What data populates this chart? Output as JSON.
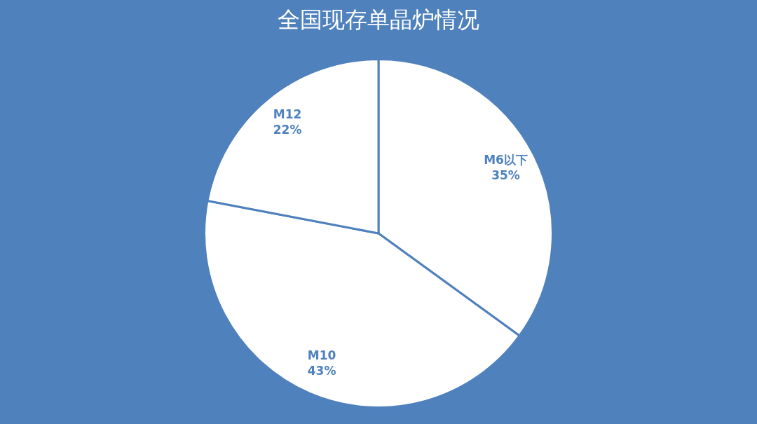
{
  "chart_data": {
    "type": "pie",
    "title": "全国现存单晶炉情况",
    "categories": [
      "M6以下",
      "M10",
      "M12"
    ],
    "values": [
      35,
      43,
      22
    ],
    "colors": [
      "#ffffff",
      "#ffffff",
      "#ffffff"
    ],
    "value_labels": [
      "35%",
      "43%",
      "22%"
    ],
    "legend": false
  }
}
